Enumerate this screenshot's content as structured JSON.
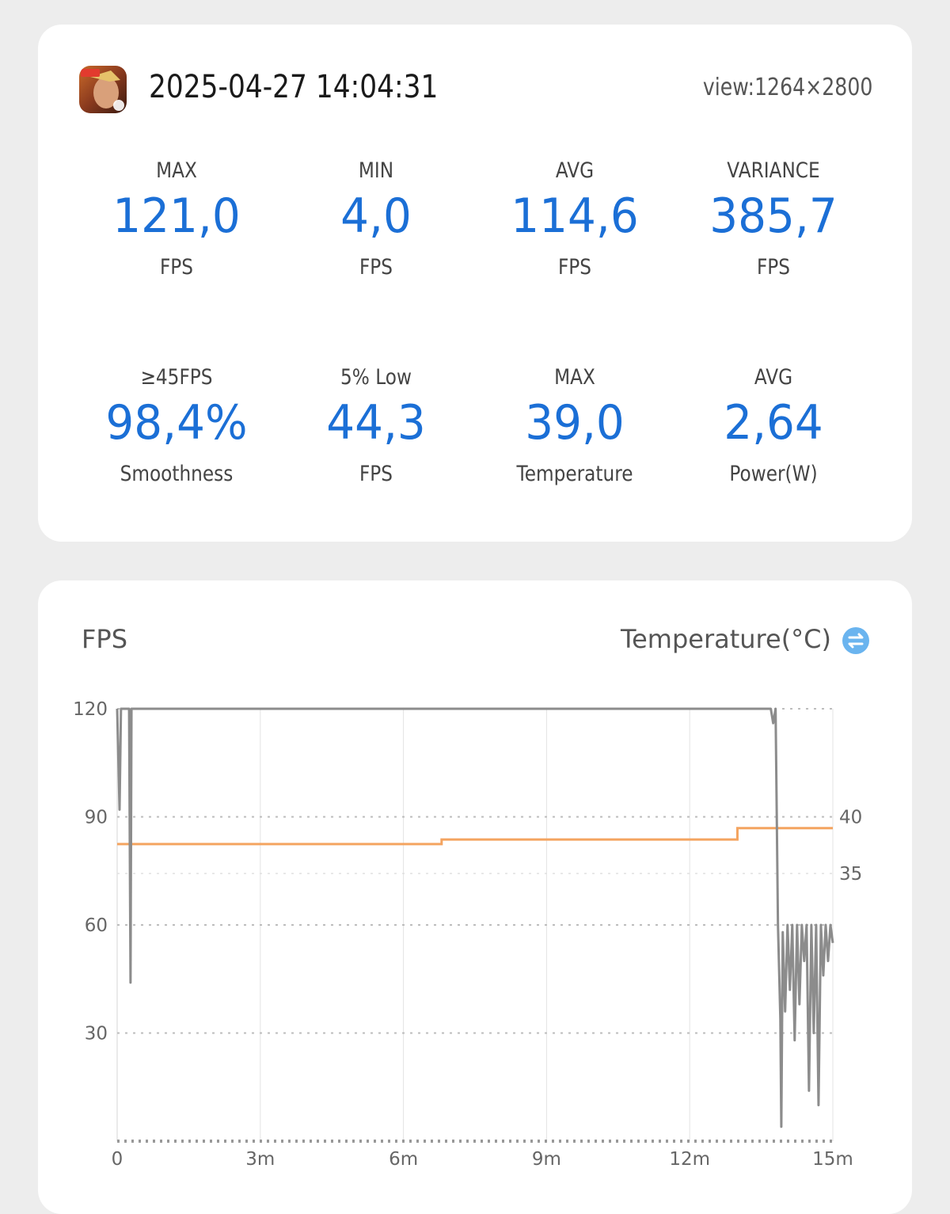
{
  "header": {
    "app_icon": "game-app-icon",
    "timestamp": "2025-04-27 14:04:31",
    "view": "view:1264×2800"
  },
  "stats": [
    {
      "label": "MAX",
      "value": "121,0",
      "unit": "FPS"
    },
    {
      "label": "MIN",
      "value": "4,0",
      "unit": "FPS"
    },
    {
      "label": "AVG",
      "value": "114,6",
      "unit": "FPS"
    },
    {
      "label": "VARIANCE",
      "value": "385,7",
      "unit": "FPS"
    },
    {
      "label": "≥45FPS",
      "value": "98,4%",
      "unit": "Smoothness"
    },
    {
      "label": "5% Low",
      "value": "44,3",
      "unit": "FPS"
    },
    {
      "label": "MAX",
      "value": "39,0",
      "unit": "Temperature"
    },
    {
      "label": "AVG",
      "value": "2,64",
      "unit": "Power(W)"
    }
  ],
  "colors": {
    "accent": "#1b6fd6",
    "fps_line": "#8c8c8c",
    "temp_line": "#f4a460",
    "swap_icon": "#6ab4ef"
  },
  "chart": {
    "left_title": "FPS",
    "right_title": "Temperature(°C)",
    "swap_icon": "swap-icon"
  },
  "chart_data": {
    "type": "line",
    "x_ticks": [
      "0",
      "3m",
      "6m",
      "9m",
      "12m",
      "15m"
    ],
    "xlim_min": [
      0,
      15
    ],
    "y_ticks": [
      "120",
      "90",
      "60",
      "30"
    ],
    "ylim": [
      0,
      120
    ],
    "y2_ticks": [
      "40",
      "35"
    ],
    "grid": true,
    "series": [
      {
        "axis": "left",
        "x": [
          0,
          0.05,
          0.08,
          0.1,
          0.15,
          0.2,
          0.25,
          0.28,
          0.3,
          0.35,
          1,
          3,
          6,
          9,
          12,
          13.7,
          13.75,
          13.8,
          13.85,
          13.9,
          13.92,
          13.95,
          14.0,
          14.05,
          14.1,
          14.15,
          14.2,
          14.25,
          14.3,
          14.35,
          14.4,
          14.45,
          14.5,
          14.55,
          14.6,
          14.65,
          14.7,
          14.75,
          14.8,
          14.85,
          14.9,
          14.95,
          15.0
        ],
        "values": [
          120,
          92,
          120,
          120,
          120,
          120,
          120,
          44,
          120,
          120,
          120,
          120,
          120,
          120,
          120,
          120,
          116,
          120,
          60,
          34,
          4,
          58,
          36,
          60,
          42,
          60,
          28,
          60,
          38,
          60,
          50,
          60,
          14,
          60,
          30,
          60,
          10,
          60,
          46,
          60,
          50,
          60,
          55
        ]
      },
      {
        "axis": "right",
        "x": [
          0,
          6.8,
          6.8,
          13.0,
          13.0,
          15.0
        ],
        "values": [
          37.6,
          37.6,
          38.0,
          38.0,
          39.0,
          39.0
        ]
      }
    ]
  }
}
